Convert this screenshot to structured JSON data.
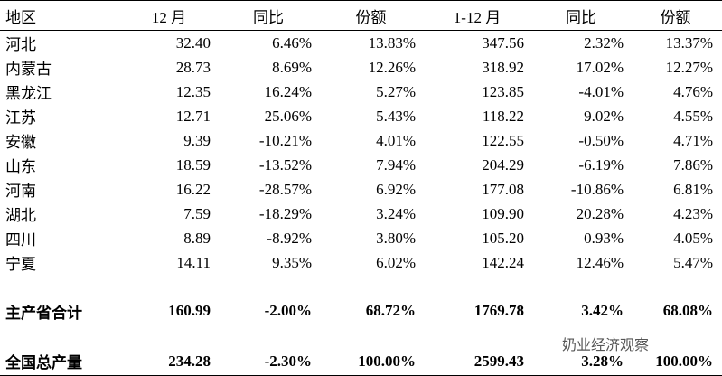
{
  "table": {
    "header": [
      "地区",
      "12 月",
      "同比",
      "份额",
      "1-12 月",
      "同比",
      "份额"
    ],
    "rows": [
      [
        "河北",
        "32.40",
        "6.46%",
        "13.83%",
        "347.56",
        "2.32%",
        "13.37%"
      ],
      [
        "内蒙古",
        "28.73",
        "8.69%",
        "12.26%",
        "318.92",
        "17.02%",
        "12.27%"
      ],
      [
        "黑龙江",
        "12.35",
        "16.24%",
        "5.27%",
        "123.85",
        "-4.01%",
        "4.76%"
      ],
      [
        "江苏",
        "12.71",
        "25.06%",
        "5.43%",
        "118.22",
        "9.02%",
        "4.55%"
      ],
      [
        "安徽",
        "9.39",
        "-10.21%",
        "4.01%",
        "122.55",
        "-0.50%",
        "4.71%"
      ],
      [
        "山东",
        "18.59",
        "-13.52%",
        "7.94%",
        "204.29",
        "-6.19%",
        "7.86%"
      ],
      [
        "河南",
        "16.22",
        "-28.57%",
        "6.92%",
        "177.08",
        "-10.86%",
        "6.81%"
      ],
      [
        "湖北",
        "7.59",
        "-18.29%",
        "3.24%",
        "109.90",
        "20.28%",
        "4.23%"
      ],
      [
        "四川",
        "8.89",
        "-8.92%",
        "3.80%",
        "105.20",
        "0.93%",
        "4.05%"
      ],
      [
        "宁夏",
        "14.11",
        "9.35%",
        "6.02%",
        "142.24",
        "12.46%",
        "5.47%"
      ]
    ],
    "summary_rows": [
      [
        "主产省合计",
        "160.99",
        "-2.00%",
        "68.72%",
        "1769.78",
        "3.42%",
        "68.08%"
      ],
      [
        "全国总产量",
        "234.28",
        "-2.30%",
        "100.00%",
        "2599.43",
        "3.28%",
        "100.00%"
      ]
    ]
  },
  "watermark": "奶业经济观察"
}
